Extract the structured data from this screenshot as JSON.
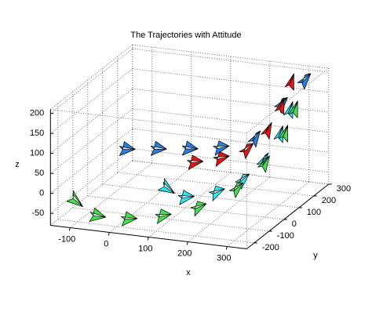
{
  "chart_data": {
    "type": "arrows3d",
    "title": "The Trajectories with Attitude",
    "x_label": "x",
    "y_label": "y",
    "z_label": "z",
    "xlim": [
      -150,
      350
    ],
    "ylim": [
      -250,
      300
    ],
    "zlim": [
      -80,
      210
    ],
    "xticks": [
      -100,
      0,
      100,
      200,
      300
    ],
    "yticks": [
      -200,
      -100,
      0,
      100,
      200,
      300
    ],
    "zticks": [
      -50,
      0,
      50,
      100,
      150,
      200
    ],
    "grid": true,
    "series": [
      {
        "color": "#2a7ee0",
        "x": [
          -80,
          0,
          80,
          160,
          240,
          280,
          320
        ],
        "y": [
          50,
          50,
          50,
          50,
          80,
          150,
          200
        ],
        "z": [
          30,
          40,
          50,
          60,
          80,
          150,
          200
        ]
      },
      {
        "color": "#e01818",
        "x": [
          120,
          180,
          240,
          280,
          300,
          310
        ],
        "y": [
          -20,
          0,
          20,
          60,
          100,
          140
        ],
        "z": [
          40,
          50,
          70,
          110,
          160,
          210
        ]
      },
      {
        "color": "#30e6f0",
        "x": [
          60,
          120,
          200,
          260,
          300,
          320,
          330
        ],
        "y": [
          -40,
          -80,
          -80,
          -60,
          -20,
          40,
          80
        ],
        "z": [
          -20,
          -30,
          -10,
          20,
          60,
          110,
          160
        ]
      },
      {
        "color": "#44e050",
        "x": [
          -130,
          -60,
          20,
          100,
          180,
          260,
          310,
          340,
          350
        ],
        "y": [
          -150,
          -200,
          -200,
          -180,
          -150,
          -100,
          -40,
          20,
          60
        ],
        "z": [
          -40,
          -60,
          -60,
          -50,
          -30,
          10,
          60,
          120,
          170
        ]
      }
    ]
  }
}
